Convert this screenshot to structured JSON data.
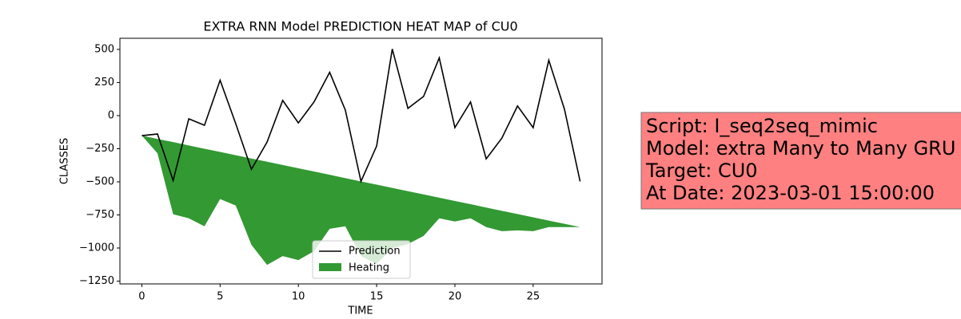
{
  "chart_data": {
    "type": "line",
    "title": "EXTRA RNN Model PREDICTION HEAT MAP of CU0",
    "xlabel": "TIME",
    "ylabel": "CLASSES",
    "x": [
      0,
      1,
      2,
      3,
      4,
      5,
      6,
      7,
      8,
      9,
      10,
      11,
      12,
      13,
      14,
      15,
      16,
      17,
      18,
      19,
      20,
      21,
      22,
      23,
      24,
      25,
      26,
      27,
      28
    ],
    "series": [
      {
        "name": "Prediction",
        "color": "#000000",
        "values": [
          -151,
          -139,
          -490,
          -24,
          -73,
          267,
          -61,
          -406,
          -200,
          115,
          -55,
          103,
          327,
          42,
          -497,
          -230,
          503,
          55,
          145,
          436,
          -91,
          103,
          -327,
          -170,
          73,
          -91,
          418,
          48,
          -497
        ]
      },
      {
        "name": "Heating",
        "color": "#339933",
        "values": [
          -151,
          -285,
          -745,
          -776,
          -836,
          -630,
          -679,
          -976,
          -1127,
          -1061,
          -1091,
          -1024,
          -855,
          -836,
          -1061,
          -1120,
          -1000,
          -970,
          -909,
          -776,
          -800,
          -776,
          -842,
          -873,
          -867,
          -873,
          -842,
          -842,
          -842
        ],
        "upper": [
          -151,
          -176,
          -200,
          -225,
          -250,
          -274,
          -299,
          -324,
          -348,
          -373,
          -398,
          -422,
          -447,
          -472,
          -497,
          -521,
          -546,
          -571,
          -595,
          -620,
          -645,
          -669,
          -694,
          -719,
          -743,
          -768,
          -793,
          -817,
          -842
        ]
      }
    ],
    "xlim": [
      -1.4,
      29.4
    ],
    "ylim": [
      -1271,
      584
    ],
    "xticks": [
      0,
      5,
      10,
      15,
      20,
      25
    ],
    "yticks": [
      500,
      250,
      0,
      {
        "value": -250,
        "label": "−250"
      },
      {
        "value": -500,
        "label": "−500"
      },
      {
        "value": -750,
        "label": "−750"
      },
      {
        "value": -1000,
        "label": "−1000"
      },
      {
        "value": -1250,
        "label": "−1250"
      }
    ],
    "legend": "lower center",
    "annotation": {
      "lines": [
        "Script: I_seq2seq_mimic",
        "Model: extra Many to Many GRU",
        "Target: CU0",
        "At Date: 2023-03-01 15:00:00"
      ],
      "color": "#ff8080"
    }
  }
}
